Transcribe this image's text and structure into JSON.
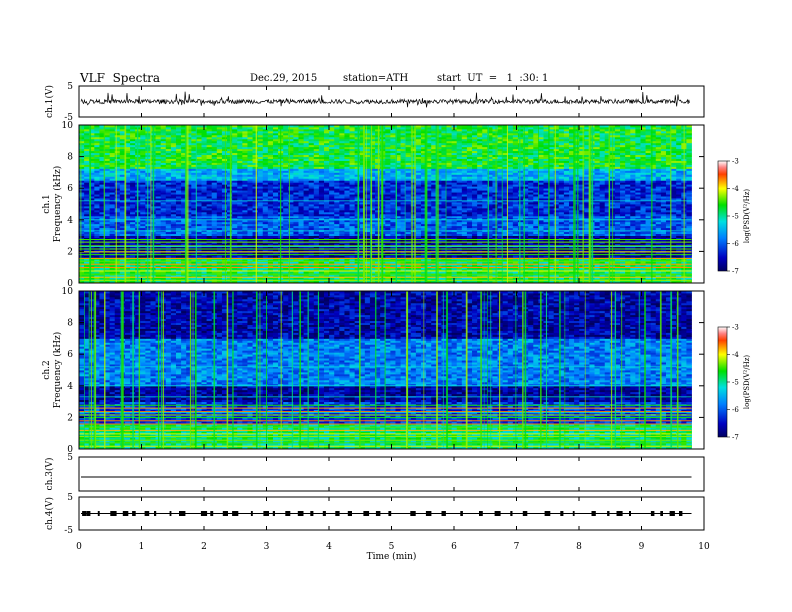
{
  "header": {
    "title": "VLF  Spectra",
    "date": "Dec.29, 2015",
    "station": "station=ATH",
    "start": "start  UT  =   1  :30: 1"
  },
  "colors": {
    "spectrogram_low": "#00008b",
    "spectrogram_mid": "#00c0ff",
    "spectrogram_high": "#ffff00",
    "spectrogram_max": "#ff0000",
    "trace": "#000000"
  },
  "chart_data": [
    {
      "type": "line",
      "id": "ch1_trace",
      "ylabel": "ch.1(V)",
      "ylim": [
        -5,
        5
      ],
      "yticks": [
        "5",
        "-5"
      ],
      "x_range_min": [
        0,
        9.8
      ],
      "baseline": 0,
      "description_level": "noisy trace around 0 V with spikes"
    },
    {
      "type": "heatmap",
      "id": "ch1_spectrogram",
      "ylabel": "ch.1\nFrequency  (kHz)",
      "ylabel_line1": "ch.1",
      "ylabel_line2": "Frequency  (kHz)",
      "ylim": [
        0,
        10
      ],
      "yticks": [
        "0",
        "2",
        "4",
        "6",
        "8",
        "10"
      ],
      "colorbar": {
        "label": "log(PSD(V²/Hz)",
        "range": [
          -7,
          -3
        ],
        "ticks": [
          "-3",
          "-4",
          "-5",
          "-6",
          "-7"
        ]
      },
      "bands_kHz_logPSD": [
        {
          "from": 0,
          "to": 1.6,
          "level": -4.8
        },
        {
          "from": 1.6,
          "to": 3.0,
          "level": -6.7
        },
        {
          "from": 3.0,
          "to": 4.2,
          "level": -6.0
        },
        {
          "from": 4.2,
          "to": 6.5,
          "level": -6.3
        },
        {
          "from": 6.5,
          "to": 7.2,
          "level": -5.5
        },
        {
          "from": 7.2,
          "to": 10,
          "level": -4.7
        }
      ]
    },
    {
      "type": "heatmap",
      "id": "ch2_spectrogram",
      "ylabel": "ch.2\nFrequency  (kHz)",
      "ylabel_line1": "ch.2",
      "ylabel_line2": "Frequency  (kHz)",
      "ylim": [
        0,
        10
      ],
      "yticks": [
        "0",
        "2",
        "4",
        "6",
        "8",
        "10"
      ],
      "colorbar": {
        "label": "log(PSD(V²/Hz)",
        "range": [
          -7,
          -3
        ],
        "ticks": [
          "-3",
          "-4",
          "-5",
          "-6",
          "-7"
        ]
      },
      "bands_kHz_logPSD": [
        {
          "from": 0,
          "to": 1.6,
          "level": -4.9
        },
        {
          "from": 1.6,
          "to": 3.0,
          "level": -6.2
        },
        {
          "from": 3.0,
          "to": 4.0,
          "level": -6.7
        },
        {
          "from": 4.0,
          "to": 7.0,
          "level": -5.8
        },
        {
          "from": 7.0,
          "to": 10,
          "level": -6.6
        }
      ]
    },
    {
      "type": "line",
      "id": "ch3_trace",
      "ylabel": "ch.3(V)",
      "ylim": [
        -5,
        5
      ],
      "yticks": [
        "5"
      ],
      "baseline": 0
    },
    {
      "type": "line",
      "id": "ch4_trace",
      "ylabel": "ch.4(V)",
      "ylim": [
        -5,
        5
      ],
      "yticks": [
        "5",
        "-5"
      ],
      "baseline": 0,
      "pulses_min": [
        0.05,
        0.12,
        0.3,
        0.5,
        0.7,
        0.85,
        1.05,
        1.2,
        1.45,
        1.6,
        1.95,
        2.1,
        2.3,
        2.45,
        2.75,
        2.95,
        3.1,
        3.3,
        3.5,
        3.7,
        3.9,
        4.1,
        4.3,
        4.55,
        4.75,
        4.95,
        5.3,
        5.55,
        5.8,
        6.1,
        6.4,
        6.65,
        6.9,
        7.1,
        7.45,
        7.7,
        7.9,
        8.2,
        8.45,
        8.6,
        8.8,
        9.15,
        9.3,
        9.45,
        9.6
      ]
    }
  ],
  "x_axis": {
    "label": "Time  (min)",
    "range": [
      0,
      10
    ],
    "ticks": [
      "0",
      "1",
      "2",
      "3",
      "4",
      "5",
      "6",
      "7",
      "8",
      "9",
      "10"
    ]
  }
}
